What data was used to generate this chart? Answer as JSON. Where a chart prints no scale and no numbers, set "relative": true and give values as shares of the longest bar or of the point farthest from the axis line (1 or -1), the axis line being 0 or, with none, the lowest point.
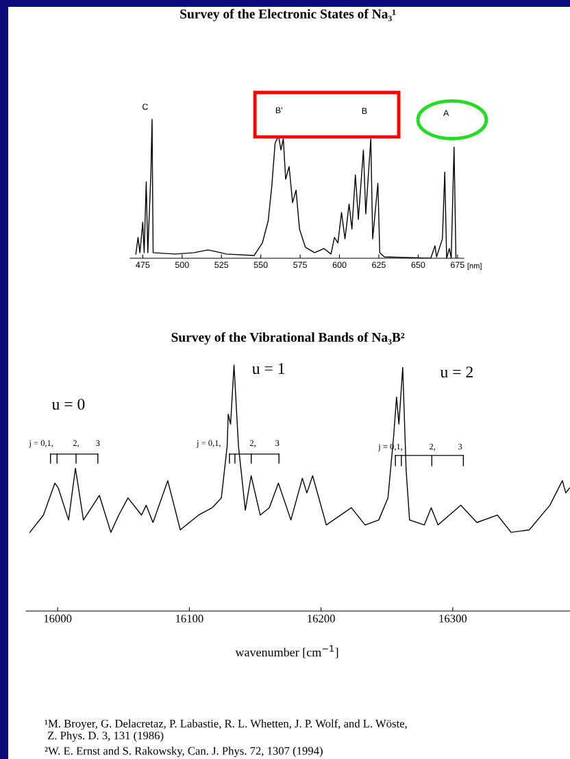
{
  "chart_data": [
    {
      "type": "line",
      "relative": true,
      "title": "Survey of the Electronic States of Na₃¹",
      "xlabel": "[nm]",
      "xlim": [
        467,
        679
      ],
      "xticks": [
        475,
        500,
        525,
        550,
        575,
        600,
        625,
        650,
        675
      ],
      "grid": false,
      "legend": false,
      "marker": "none",
      "line_style": "solid",
      "series": [
        {
          "color": "#000000",
          "x": [
            470.6,
            472.0,
            473.2,
            475.0,
            475.9,
            477.2,
            478.2,
            480.2,
            480.9,
            481.6,
            495.7,
            507.5,
            516.3,
            520.8,
            528.1,
            545.8,
            551.0,
            554.7,
            557.0,
            559.1,
            561.3,
            562.8,
            564.3,
            565.8,
            568.0,
            570.2,
            572.4,
            574.6,
            578.3,
            584.2,
            590.1,
            594.6,
            596.8,
            599.0,
            601.3,
            603.5,
            606.1,
            607.9,
            610.1,
            612.0,
            615.2,
            616.7,
            619.9,
            621.1,
            624.4,
            625.6,
            628.5,
            658.0,
            660.7,
            661.7,
            665.4,
            666.9,
            668.1,
            669.8,
            671.0,
            672.8,
            674.0
          ],
          "values": [
            0.03,
            0.15,
            0.04,
            0.26,
            0.04,
            0.55,
            0.04,
            0.62,
            1.0,
            0.04,
            0.03,
            0.04,
            0.06,
            0.05,
            0.03,
            0.02,
            0.11,
            0.27,
            0.52,
            0.83,
            0.88,
            0.78,
            0.86,
            0.57,
            0.66,
            0.4,
            0.49,
            0.21,
            0.08,
            0.04,
            0.07,
            0.03,
            0.15,
            0.11,
            0.33,
            0.14,
            0.39,
            0.21,
            0.6,
            0.28,
            0.78,
            0.32,
            0.86,
            0.14,
            0.54,
            0.04,
            0.01,
            0.0,
            0.09,
            0.01,
            0.14,
            0.62,
            0.0,
            0.07,
            0.0,
            0.8,
            0.0
          ]
        }
      ],
      "annotations": [
        "C",
        "B'",
        "B",
        "A"
      ]
    },
    {
      "type": "line",
      "relative": true,
      "title": "Survey of the Vibrational Bands of Na₃B²",
      "xlabel": "wavenumber [cm$^{−1}$]",
      "xlim": [
        15976,
        16389
      ],
      "xticks": [
        16000,
        16100,
        16200,
        16300
      ],
      "grid": false,
      "legend": false,
      "marker": "none",
      "line_style": "solid",
      "series": [
        {
          "color": "#000000",
          "x": [
            15978.9,
            15989.2,
            15997.9,
            16000.5,
            16008.3,
            16013.5,
            16019.6,
            16031.7,
            16040.4,
            16046.4,
            16053.4,
            16063.7,
            16067.2,
            16072.4,
            16083.6,
            16093.1,
            16107.0,
            16117.4,
            16124.3,
            16128.7,
            16129.5,
            16131.3,
            16133.9,
            16137.3,
            16142.5,
            16146.9,
            16153.8,
            16160.7,
            16167.6,
            16177.1,
            16185.8,
            16189.2,
            16193.6,
            16204.0,
            16223.0,
            16233.4,
            16243.8,
            16250.8,
            16255.1,
            16257.3,
            16259.1,
            16262.0,
            16264.6,
            16267.2,
            16278.4,
            16283.6,
            16288.8,
            16306.1,
            16318.3,
            16333.9,
            16344.3,
            16358.1,
            16373.7,
            16383.2,
            16385.8,
            16388.6
          ],
          "values": [
            0.32,
            0.39,
            0.52,
            0.5,
            0.37,
            0.58,
            0.37,
            0.47,
            0.32,
            0.39,
            0.46,
            0.39,
            0.43,
            0.36,
            0.53,
            0.33,
            0.39,
            0.42,
            0.46,
            0.67,
            0.8,
            0.76,
            1.0,
            0.67,
            0.41,
            0.55,
            0.39,
            0.42,
            0.52,
            0.37,
            0.54,
            0.48,
            0.55,
            0.35,
            0.42,
            0.35,
            0.37,
            0.46,
            0.71,
            0.87,
            0.76,
            0.99,
            0.57,
            0.37,
            0.35,
            0.42,
            0.35,
            0.43,
            0.36,
            0.39,
            0.32,
            0.33,
            0.43,
            0.53,
            0.48,
            0.5
          ]
        }
      ],
      "annotations": [
        "u = 0",
        "j = 0,1,",
        "2,",
        "3",
        "u = 1",
        "j = 0,1,",
        "2,",
        "3",
        "u = 2",
        "j = 0,1,",
        "2,",
        "3",
        "¹M. Broyer, G. Delacretaz, P. Labastie, R. L. Whetten, J. P. Wolf, and L. Wöste,\n Z. Phys. D. 3, 131 (1986)",
        "²W. E. Ernst and S. Rakowsky, Can. J. Phys. 72, 1307 (1994)"
      ]
    }
  ]
}
